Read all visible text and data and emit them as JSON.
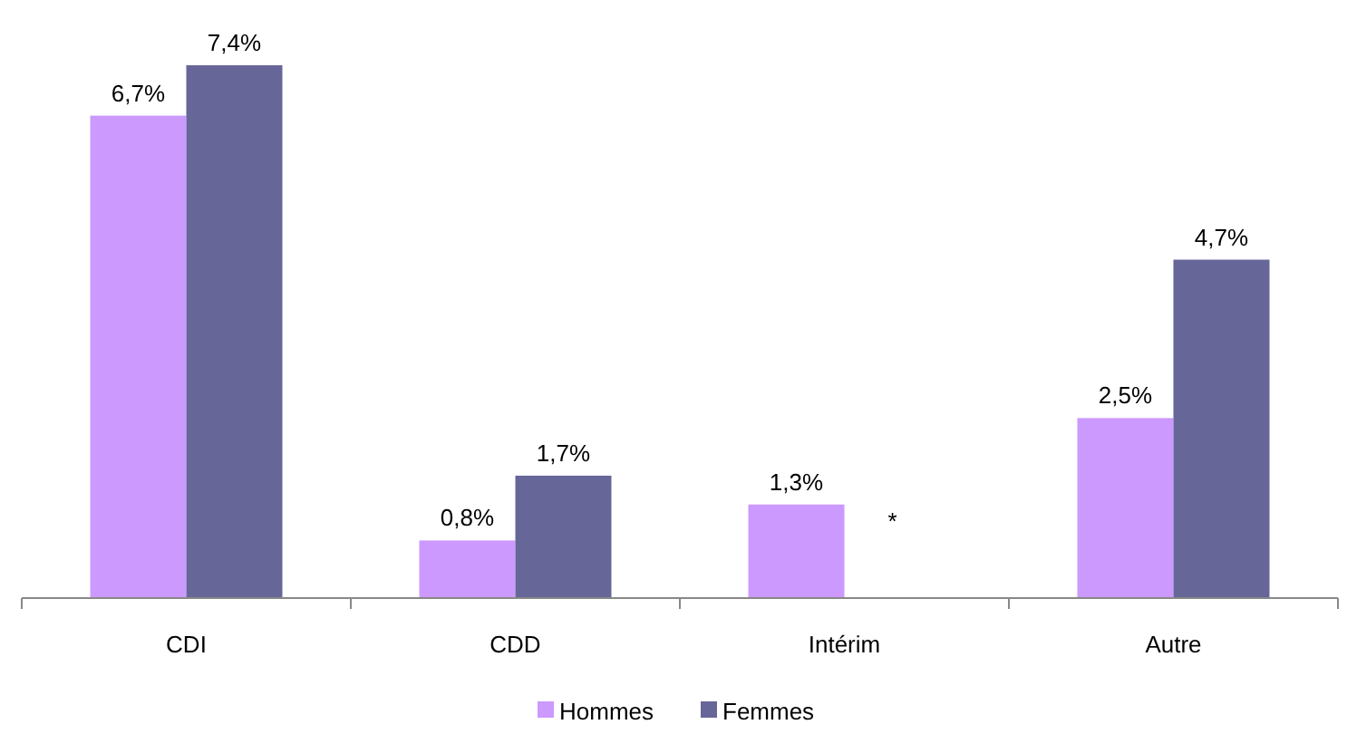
{
  "chart_data": {
    "type": "bar",
    "categories": [
      "CDI",
      "CDD",
      "Intérim",
      "Autre"
    ],
    "series": [
      {
        "name": "Hommes",
        "color": "#cc99ff",
        "values": [
          6.7,
          0.8,
          1.3,
          2.5
        ],
        "value_labels": [
          "6,7%",
          "0,8%",
          "1,3%",
          "2,5%"
        ]
      },
      {
        "name": "Femmes",
        "color": "#666699",
        "values": [
          7.4,
          1.7,
          null,
          4.7
        ],
        "value_labels": [
          "7,4%",
          "1,7%",
          "*",
          "4,7%"
        ]
      }
    ],
    "legend": "bottom"
  }
}
